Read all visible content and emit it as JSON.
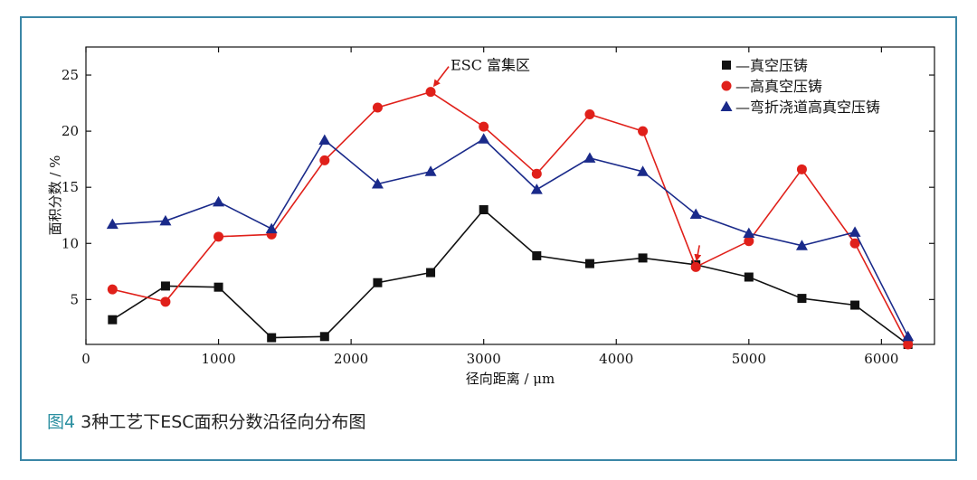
{
  "caption": {
    "figure_label": "图4",
    "text": "3种工艺下ESC面积分数沿径向分布图"
  },
  "colors": {
    "frame": "#3b86a6",
    "caption_label": "#2a8fa0",
    "annotation_arrow": "#e0201a"
  },
  "chart_data": {
    "type": "line",
    "title": "",
    "xlabel": "径向距离 / μm",
    "ylabel": "面积分数 / %",
    "xlim": [
      0,
      6400
    ],
    "ylim": [
      1,
      27.5
    ],
    "xticks": [
      0,
      1000,
      2000,
      3000,
      4000,
      5000,
      6000
    ],
    "yticks": [
      5,
      10,
      15,
      20,
      25
    ],
    "x": [
      200,
      600,
      1000,
      1400,
      1800,
      2200,
      2600,
      3000,
      3400,
      3800,
      4200,
      4600,
      5000,
      5400,
      5800,
      6200
    ],
    "series": [
      {
        "name": "—真空压铸",
        "color": "#111111",
        "marker": "square",
        "values": [
          3.2,
          6.2,
          6.1,
          1.6,
          1.7,
          6.5,
          7.4,
          13.0,
          8.9,
          8.2,
          8.7,
          8.1,
          7.0,
          5.1,
          4.5,
          1.0
        ]
      },
      {
        "name": "—高真空压铸",
        "color": "#e0201a",
        "marker": "circle",
        "values": [
          5.9,
          4.8,
          10.6,
          10.8,
          17.4,
          22.1,
          23.5,
          20.4,
          16.2,
          21.5,
          20.0,
          7.9,
          10.2,
          16.6,
          10.0,
          1.0
        ]
      },
      {
        "name": "—弯折浇道高真空压铸",
        "color": "#1a2a8a",
        "marker": "triangle",
        "values": [
          11.7,
          12.0,
          13.7,
          11.3,
          19.2,
          15.3,
          16.4,
          19.3,
          14.8,
          17.6,
          16.4,
          12.6,
          10.9,
          9.8,
          11.0,
          1.7
        ]
      }
    ],
    "annotations": [
      {
        "text": "ESC 富集区",
        "x": 2600,
        "y": 23.5
      },
      {
        "text": "",
        "x": 4600,
        "y": 7.9
      }
    ],
    "legend": "top-right",
    "grid": false
  }
}
